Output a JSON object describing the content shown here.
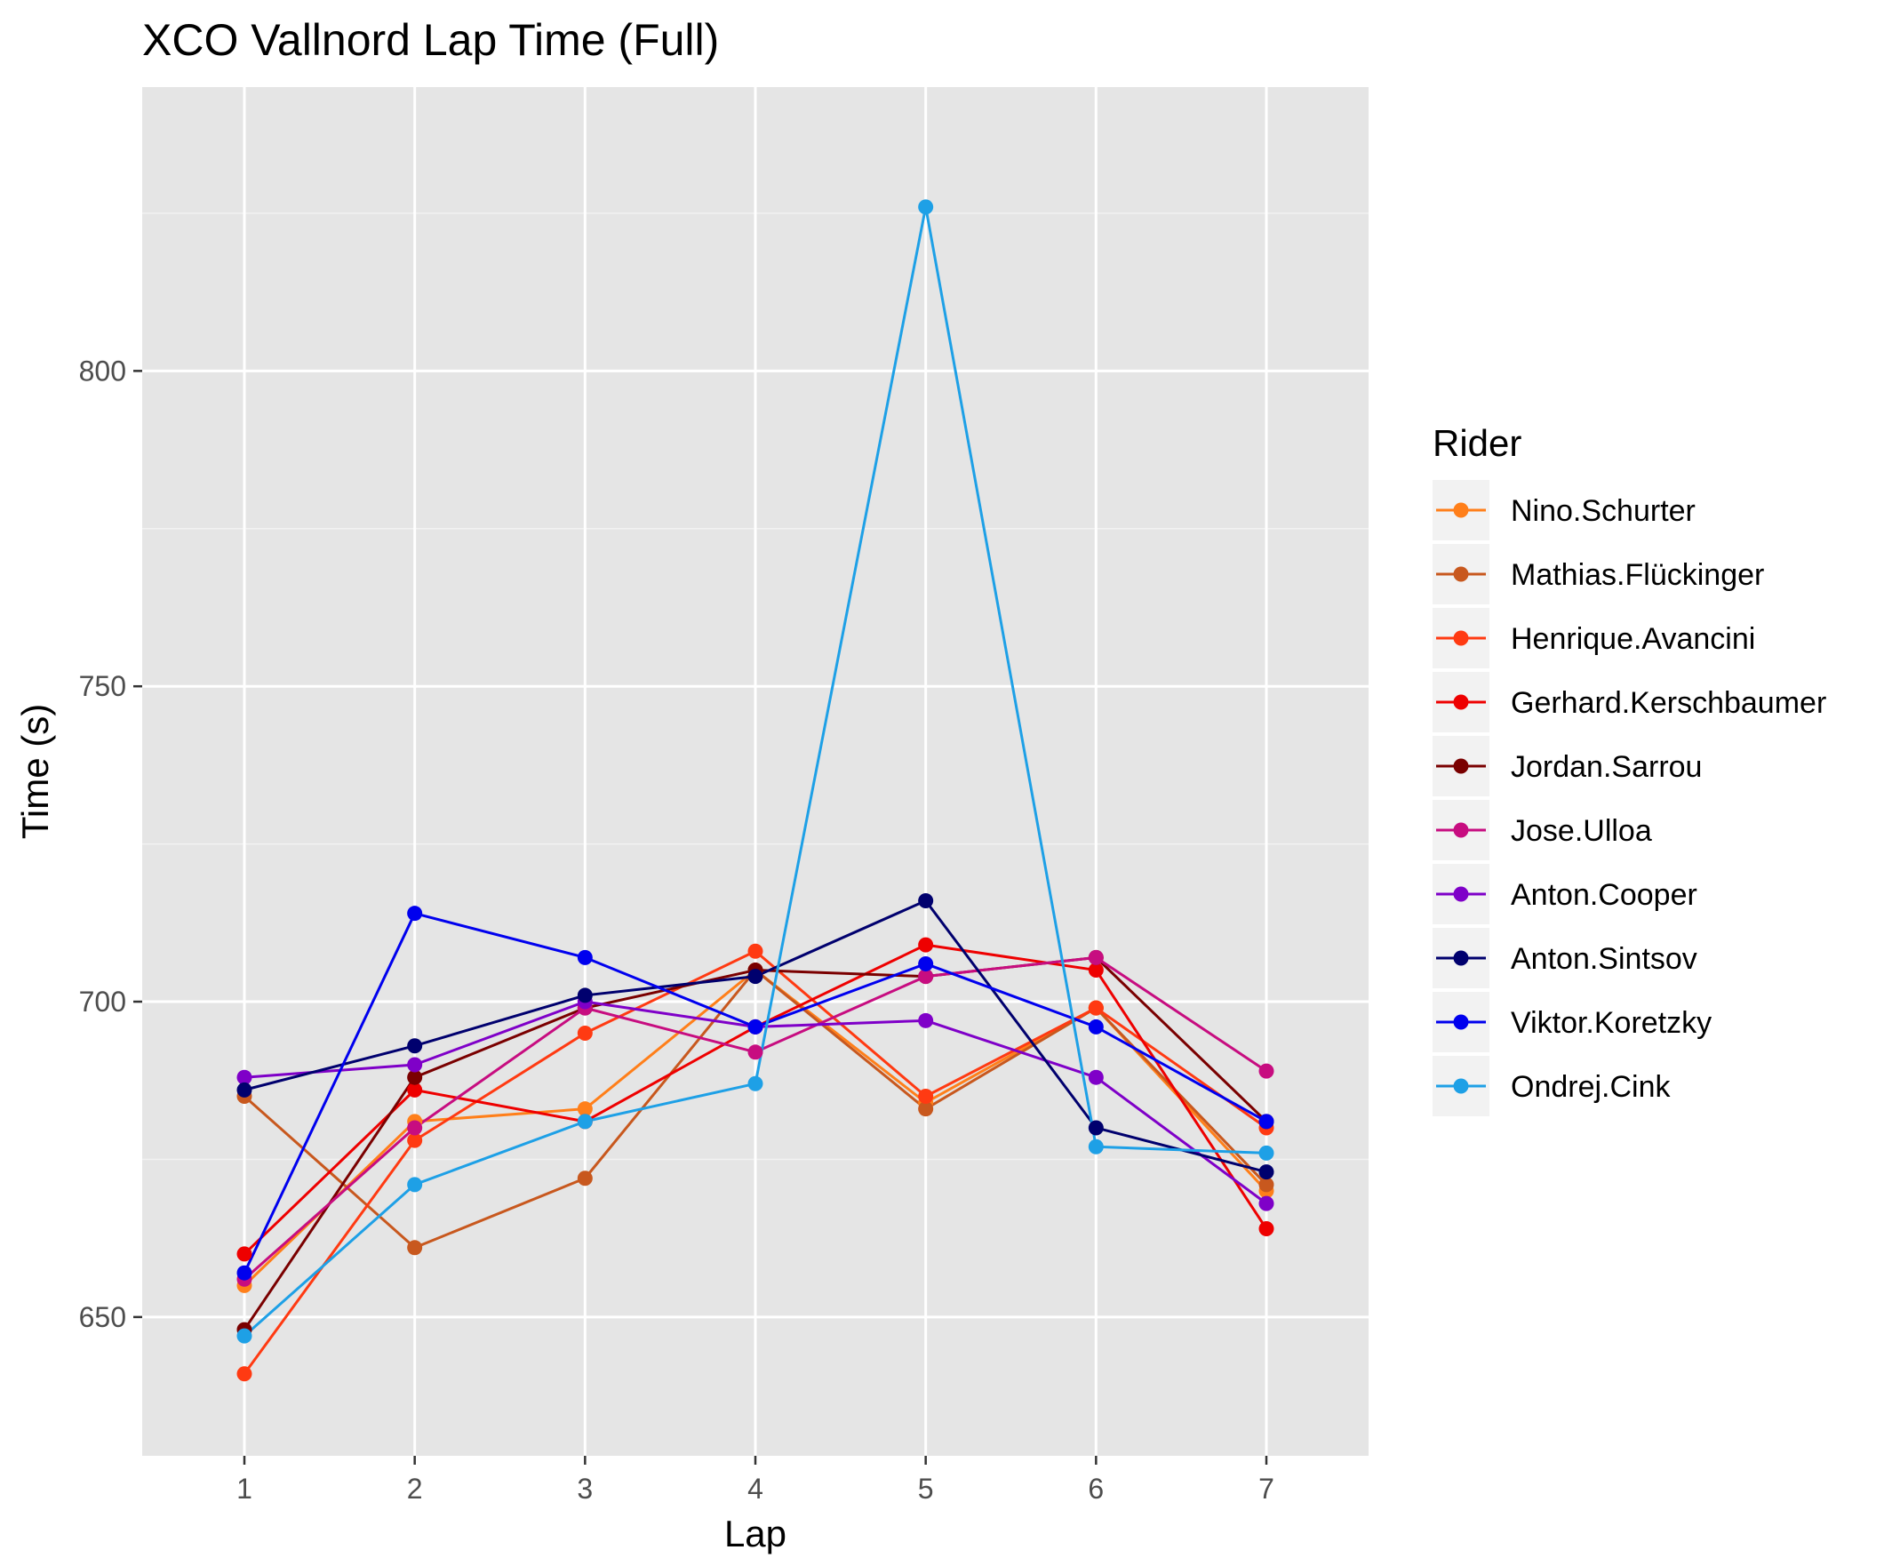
{
  "chart_data": {
    "type": "line",
    "title": "XCO Vallnord Lap Time (Full)",
    "xlabel": "Lap",
    "ylabel": "Time (s)",
    "x": [
      1,
      2,
      3,
      4,
      5,
      6,
      7
    ],
    "xlim": [
      0.4,
      7.6
    ],
    "ylim": [
      628,
      845
    ],
    "yticks": [
      650,
      700,
      750,
      800
    ],
    "grid": true,
    "legend": {
      "title": "Rider",
      "position": "right"
    },
    "series": [
      {
        "name": "Nino.Schurter",
        "color": "#ff7f1a",
        "values": [
          655,
          681,
          683,
          705,
          684,
          699,
          670
        ]
      },
      {
        "name": "Mathias.Flückinger",
        "color": "#c8581e",
        "values": [
          685,
          661,
          672,
          705,
          683,
          699,
          671
        ]
      },
      {
        "name": "Henrique.Avancini",
        "color": "#ff3a12",
        "values": [
          641,
          678,
          695,
          708,
          685,
          699,
          680
        ]
      },
      {
        "name": "Gerhard.Kerschbaumer",
        "color": "#ee0000",
        "values": [
          660,
          686,
          681,
          696,
          709,
          705,
          664
        ]
      },
      {
        "name": "Jordan.Sarrou",
        "color": "#7a0000",
        "values": [
          648,
          688,
          699,
          705,
          704,
          707,
          681
        ]
      },
      {
        "name": "Jose.Ulloa",
        "color": "#c70d80",
        "values": [
          656,
          680,
          699,
          692,
          704,
          707,
          689
        ]
      },
      {
        "name": "Anton.Cooper",
        "color": "#7f00c8",
        "values": [
          688,
          690,
          700,
          696,
          697,
          688,
          668
        ]
      },
      {
        "name": "Anton.Sintsov",
        "color": "#00006e",
        "values": [
          686,
          693,
          701,
          704,
          716,
          680,
          673
        ]
      },
      {
        "name": "Viktor.Koretzky",
        "color": "#0000ee",
        "values": [
          657,
          714,
          707,
          696,
          706,
          696,
          681
        ]
      },
      {
        "name": "Ondrej.Cink",
        "color": "#1ea0e6",
        "values": [
          647,
          671,
          681,
          687,
          826,
          677,
          676
        ]
      }
    ]
  }
}
